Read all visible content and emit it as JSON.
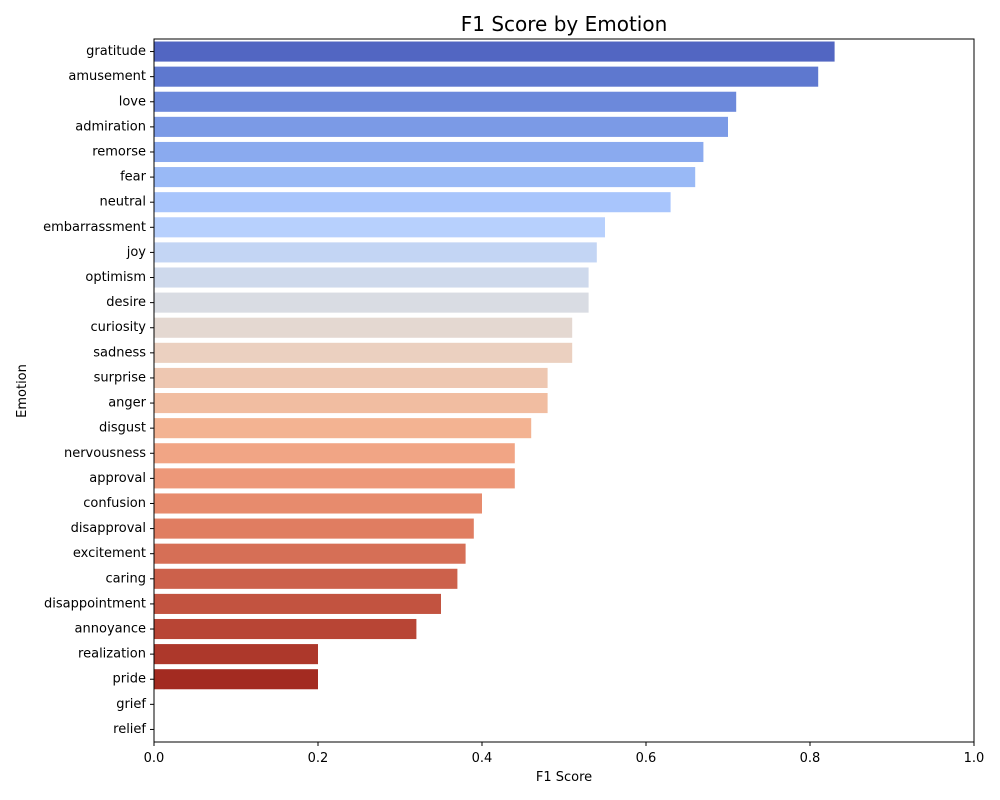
{
  "chart_data": {
    "type": "bar",
    "orientation": "horizontal",
    "title": "F1 Score by Emotion",
    "xlabel": "F1 Score",
    "ylabel": "Emotion",
    "xlim": [
      0,
      1.0
    ],
    "xticks": [
      "0.0",
      "0.2",
      "0.4",
      "0.6",
      "0.8",
      "1.0"
    ],
    "grid": false,
    "palette": "coolwarm",
    "categories": [
      "gratitude",
      "amusement",
      "love",
      "admiration",
      "remorse",
      "fear",
      "neutral",
      "embarrassment",
      "joy",
      "optimism",
      "desire",
      "curiosity",
      "sadness",
      "surprise",
      "anger",
      "disgust",
      "nervousness",
      "approval",
      "confusion",
      "disapproval",
      "excitement",
      "caring",
      "disappointment",
      "annoyance",
      "realization",
      "pride",
      "grief",
      "relief"
    ],
    "values": [
      0.83,
      0.81,
      0.71,
      0.7,
      0.67,
      0.66,
      0.63,
      0.55,
      0.54,
      0.53,
      0.53,
      0.51,
      0.51,
      0.48,
      0.48,
      0.46,
      0.44,
      0.44,
      0.4,
      0.39,
      0.38,
      0.37,
      0.35,
      0.32,
      0.2,
      0.2,
      0.0,
      0.0
    ],
    "colors": [
      "#5266c2",
      "#5e78cf",
      "#6c89db",
      "#7b9ae6",
      "#8aaaef",
      "#99b9f6",
      "#a8c5fc",
      "#b7d0fd",
      "#c3d5f4",
      "#ced9ec",
      "#d9dce3",
      "#e4d8d1",
      "#ebd0c0",
      "#eec7b1",
      "#f1bda1",
      "#f3b392",
      "#f1a585",
      "#ed9879",
      "#e78b6d",
      "#e07d61",
      "#d66f56",
      "#cc614b",
      "#c25340",
      "#b84535",
      "#ad382b",
      "#a32b21",
      "#982017",
      "#8d150d"
    ]
  }
}
